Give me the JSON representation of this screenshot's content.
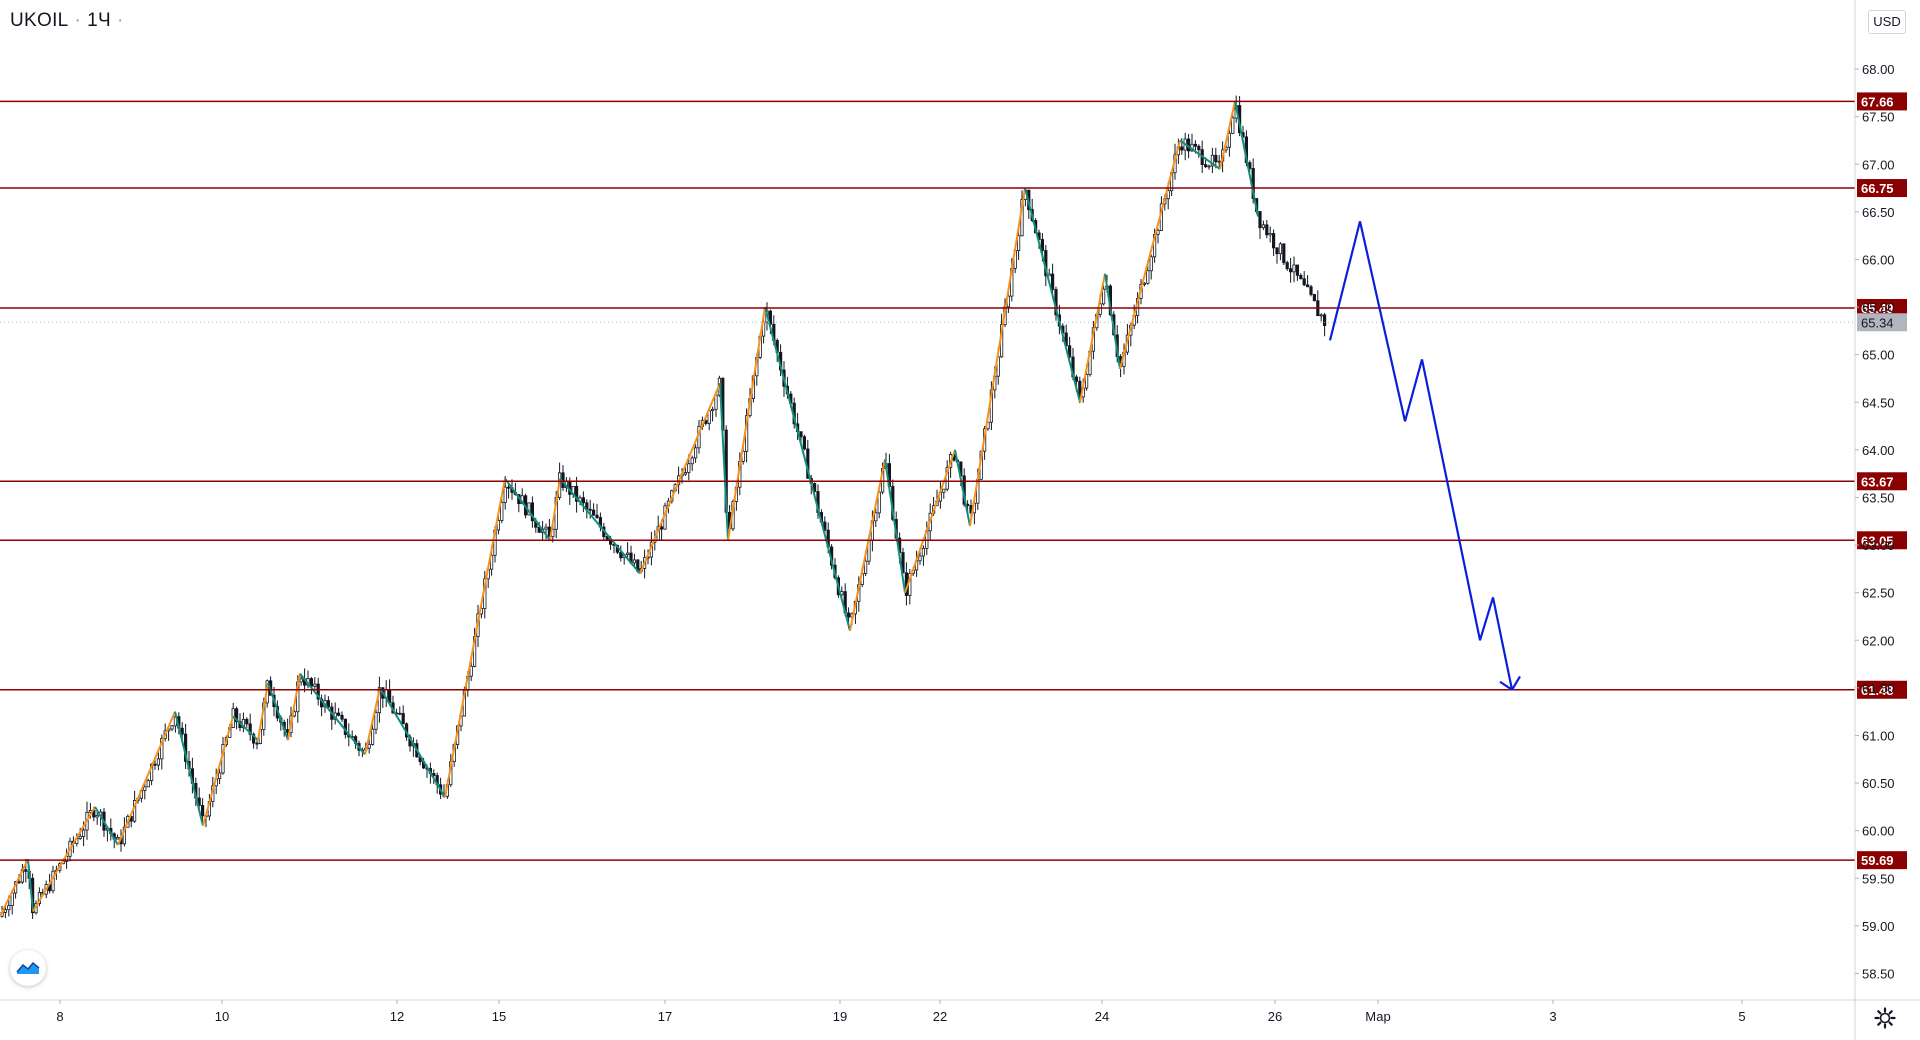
{
  "header": {
    "symbol": "UKOIL",
    "interval": "1Ч"
  },
  "currency_label": "USD",
  "icons": {
    "logo": "tradingview-logo-icon",
    "settings": "gear-icon"
  },
  "colors": {
    "level_line": "#8b0000",
    "level_label_bg": "#8b0000",
    "up_swing": "#f5921e",
    "down_swing": "#138d7a",
    "forecast": "#0b1fd8",
    "candle": "#131722",
    "current_price_bg": "#b2b5be"
  },
  "chart_data": {
    "type": "candlestick",
    "ylim": [
      58.2,
      68.7
    ],
    "price_ticks": [
      "68.00",
      "67.50",
      "67.00",
      "66.50",
      "66.00",
      "65.50",
      "65.00",
      "64.50",
      "64.00",
      "63.50",
      "63.00",
      "62.50",
      "62.00",
      "61.50",
      "61.00",
      "60.50",
      "60.00",
      "59.50",
      "59.00",
      "58.50"
    ],
    "time_ticks": [
      "8",
      "10",
      "12",
      "15",
      "17",
      "19",
      "22",
      "24",
      "26",
      "Мар",
      "3",
      "5"
    ],
    "levels": [
      "67.66",
      "66.75",
      "65.49",
      "63.67",
      "63.05",
      "61.48",
      "59.69"
    ],
    "current_price": "65.34",
    "swing_points": [
      [
        0,
        59.1
      ],
      [
        28,
        59.7
      ],
      [
        33,
        59.15
      ],
      [
        95,
        60.25
      ],
      [
        118,
        59.85
      ],
      [
        175,
        61.25
      ],
      [
        203,
        60.05
      ],
      [
        233,
        61.2
      ],
      [
        258,
        60.95
      ],
      [
        268,
        61.55
      ],
      [
        288,
        60.95
      ],
      [
        300,
        61.65
      ],
      [
        365,
        60.8
      ],
      [
        380,
        61.5
      ],
      [
        445,
        60.35
      ],
      [
        505,
        63.7
      ],
      [
        550,
        63.05
      ],
      [
        560,
        63.7
      ],
      [
        640,
        62.7
      ],
      [
        720,
        64.7
      ],
      [
        728,
        63.05
      ],
      [
        765,
        65.5
      ],
      [
        850,
        62.1
      ],
      [
        885,
        63.9
      ],
      [
        905,
        62.5
      ],
      [
        955,
        64.0
      ],
      [
        970,
        63.2
      ],
      [
        1025,
        66.75
      ],
      [
        1080,
        64.5
      ],
      [
        1105,
        65.85
      ],
      [
        1120,
        64.85
      ],
      [
        1180,
        67.25
      ],
      [
        1220,
        66.95
      ],
      [
        1235,
        67.66
      ],
      [
        1258,
        66.45
      ]
    ],
    "forecast_path": [
      [
        1330,
        65.15
      ],
      [
        1360,
        66.4
      ],
      [
        1405,
        64.3
      ],
      [
        1422,
        64.95
      ],
      [
        1480,
        62.0
      ],
      [
        1493,
        62.45
      ],
      [
        1512,
        61.48
      ],
      [
        1520,
        61.62
      ]
    ],
    "candles_end_x": 1325,
    "last_close": 65.34
  }
}
